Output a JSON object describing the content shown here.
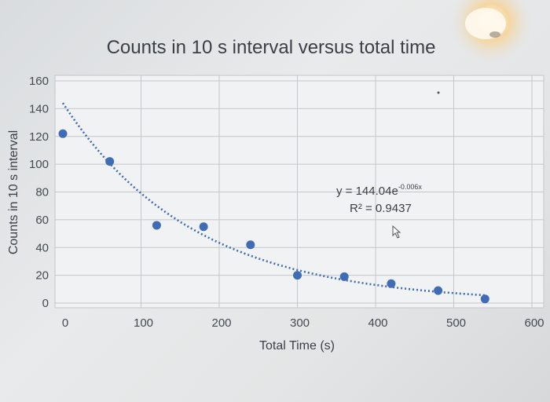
{
  "chart_data": {
    "type": "scatter",
    "title": "Counts in 10 s interval versus total time",
    "xlabel": "Total Time (s)",
    "ylabel": "Counts in 10 s interval",
    "xlim": [
      0,
      600
    ],
    "ylim": [
      0,
      160
    ],
    "x_ticks": [
      0,
      100,
      200,
      300,
      400,
      500,
      600
    ],
    "y_ticks": [
      0,
      20,
      40,
      60,
      80,
      100,
      120,
      140,
      160
    ],
    "grid": true,
    "series": [
      {
        "x": [
          0,
          60,
          120,
          180,
          240,
          300,
          360,
          420,
          480,
          540
        ],
        "y": [
          122,
          102,
          56,
          55,
          42,
          20,
          19,
          14,
          9,
          3
        ]
      }
    ],
    "trendline": {
      "type": "exponential",
      "a": 144.04,
      "b": -0.006,
      "x_range": [
        0,
        540
      ],
      "equation_prefix": "y = 144.04e",
      "equation_exponent": "-0.006x",
      "r2_text": "R² = 0.9437"
    },
    "colors": {
      "marker": "#3f6cb4",
      "grid": "#c4c7ca"
    }
  }
}
